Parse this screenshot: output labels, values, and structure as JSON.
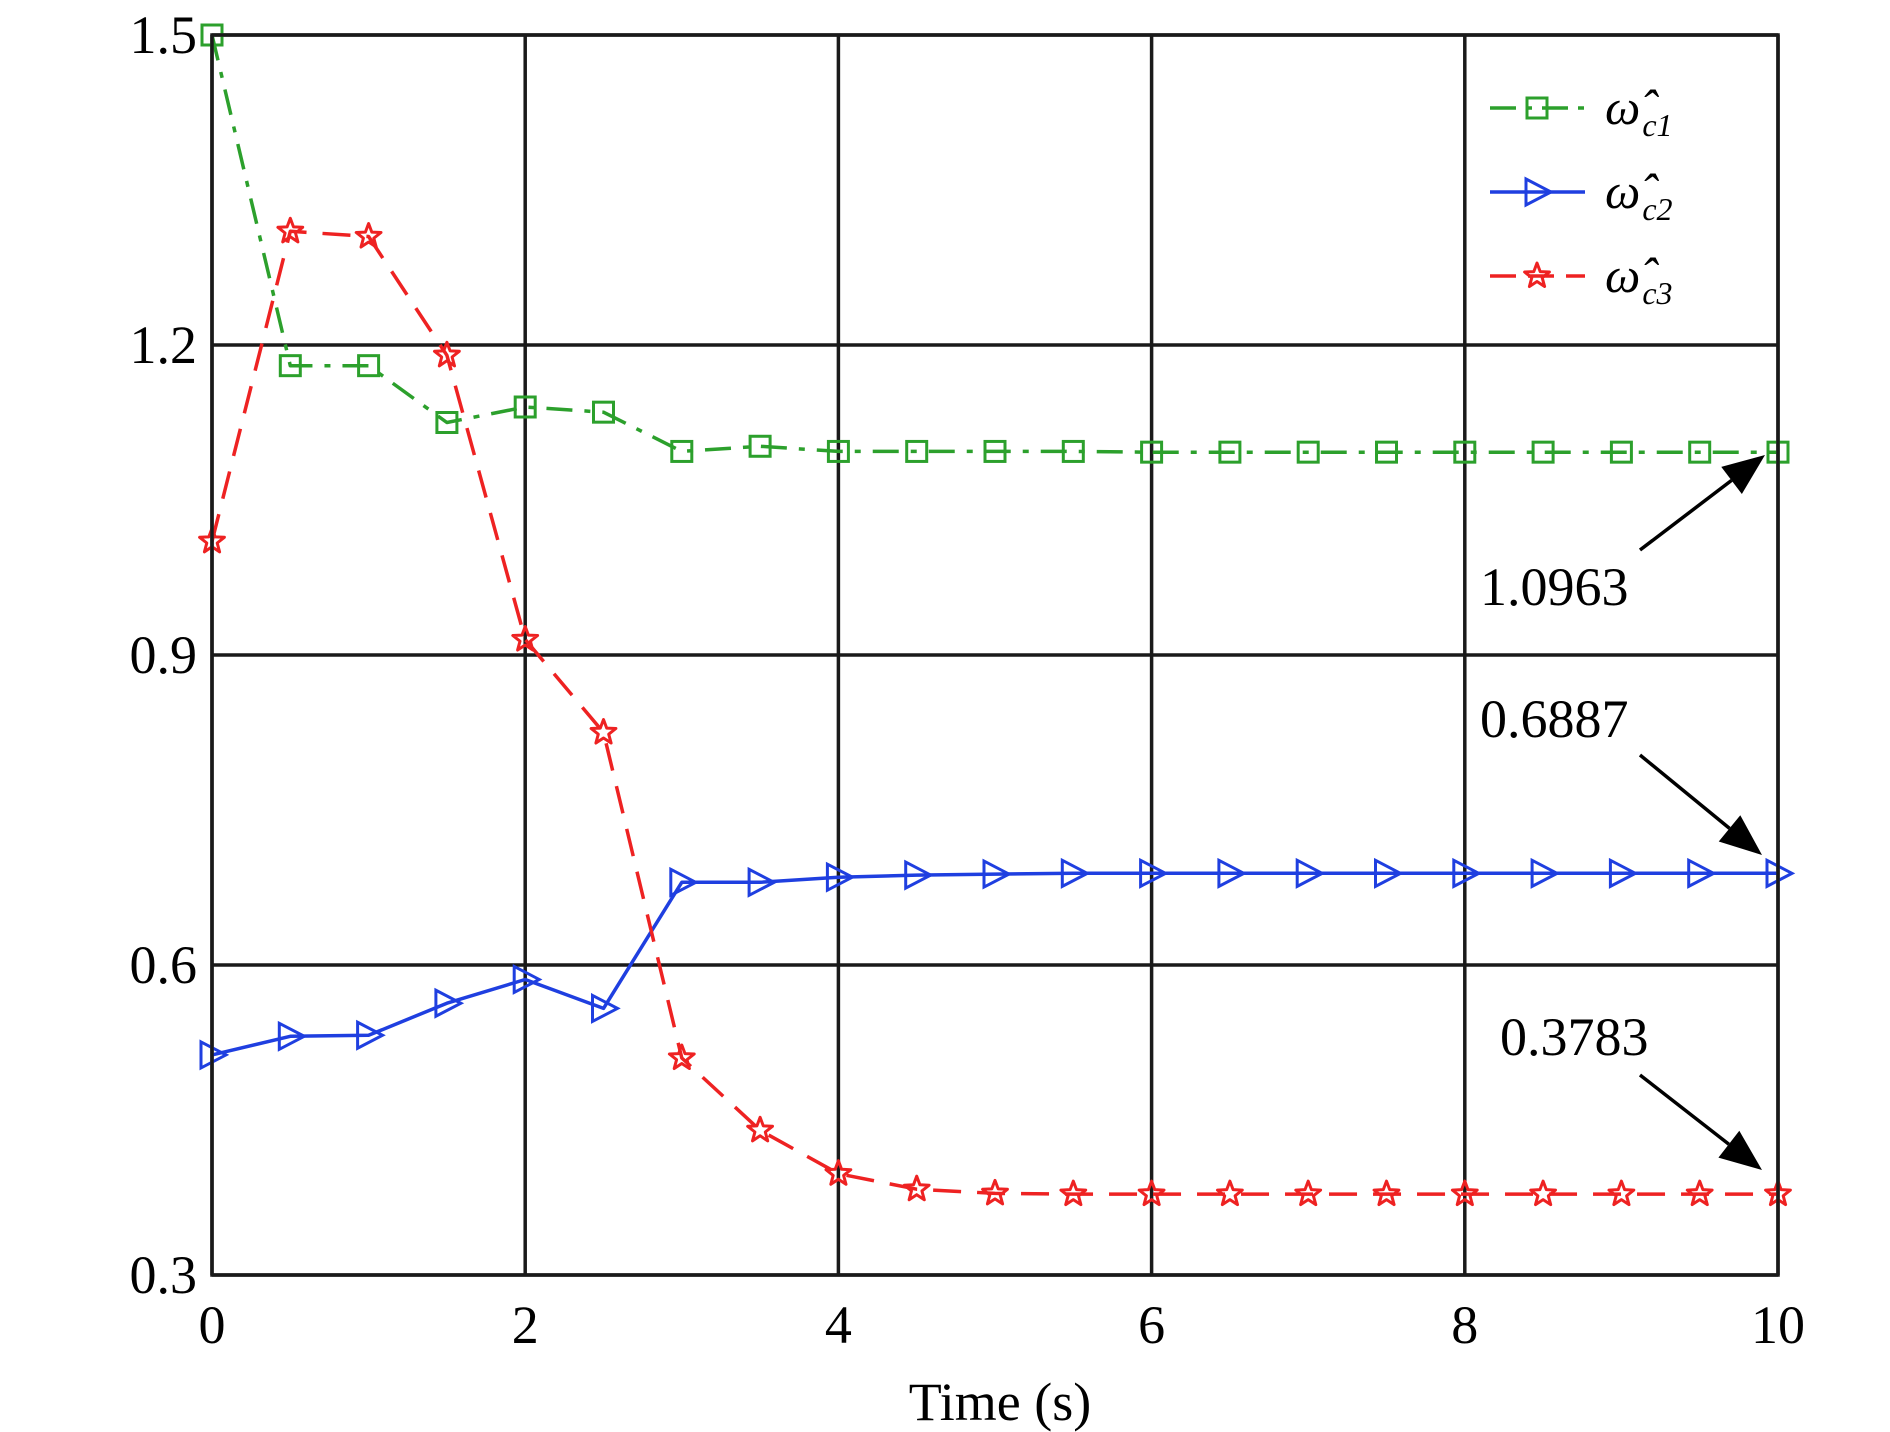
{
  "chart_data": {
    "type": "line",
    "xlabel": "Time (s)",
    "ylabel": "",
    "xlim": [
      0,
      10
    ],
    "ylim": [
      0.3,
      1.5
    ],
    "xticks": [
      0,
      2,
      4,
      6,
      8,
      10
    ],
    "xtick_labels": [
      "0",
      "2",
      "4",
      "6",
      "8",
      "10"
    ],
    "yticks": [
      0.3,
      0.6,
      0.9,
      1.2,
      1.5
    ],
    "ytick_labels": [
      "0.3",
      "0.6",
      "0.9",
      "1.2",
      "1.5"
    ],
    "grid": true,
    "legend_position": "top-right",
    "series": [
      {
        "legend": {
          "base": "ω̂",
          "sub": "c1"
        },
        "color": "#2ca02c",
        "line_style": "dash-dot",
        "marker": "square",
        "x": [
          0,
          0.5,
          1,
          1.5,
          2,
          2.5,
          3,
          3.5,
          4,
          4.5,
          5,
          5.5,
          6,
          6.5,
          7,
          7.5,
          8,
          8.5,
          9,
          9.5,
          10
        ],
        "y": [
          1.5,
          1.18,
          1.18,
          1.125,
          1.14,
          1.135,
          1.097,
          1.102,
          1.097,
          1.097,
          1.097,
          1.097,
          1.0963,
          1.0963,
          1.0963,
          1.0963,
          1.0963,
          1.0963,
          1.0963,
          1.0963,
          1.0963
        ]
      },
      {
        "legend": {
          "base": "ω̂",
          "sub": "c2"
        },
        "color": "#1f3fe0",
        "line_style": "solid",
        "marker": "triangle-right",
        "x": [
          0,
          0.5,
          1,
          1.5,
          2,
          2.5,
          3,
          3.5,
          4,
          4.5,
          5,
          5.5,
          6,
          6.5,
          7,
          7.5,
          8,
          8.5,
          9,
          9.5,
          10
        ],
        "y": [
          0.513,
          0.531,
          0.532,
          0.563,
          0.586,
          0.558,
          0.68,
          0.68,
          0.685,
          0.687,
          0.688,
          0.6887,
          0.6887,
          0.6887,
          0.6887,
          0.6887,
          0.6887,
          0.6887,
          0.6887,
          0.6887,
          0.6887
        ]
      },
      {
        "legend": {
          "base": "ω̂",
          "sub": "c3"
        },
        "color": "#ee2222",
        "line_style": "dashed",
        "marker": "star",
        "x": [
          0,
          0.5,
          1,
          1.5,
          2,
          2.5,
          3,
          3.5,
          4,
          4.5,
          5,
          5.5,
          6,
          6.5,
          7,
          7.5,
          8,
          8.5,
          9,
          9.5,
          10
        ],
        "y": [
          1.01,
          1.31,
          1.305,
          1.19,
          0.915,
          0.825,
          0.51,
          0.44,
          0.398,
          0.383,
          0.379,
          0.3783,
          0.3783,
          0.3783,
          0.3783,
          0.3783,
          0.3783,
          0.3783,
          0.3783,
          0.3783,
          0.3783
        ]
      }
    ],
    "annotations": [
      {
        "text": "1.0963",
        "target": [
          10,
          1.0963
        ]
      },
      {
        "text": "0.6887",
        "target": [
          10,
          0.6887
        ]
      },
      {
        "text": "0.3783",
        "target": [
          10,
          0.3783
        ]
      }
    ]
  }
}
